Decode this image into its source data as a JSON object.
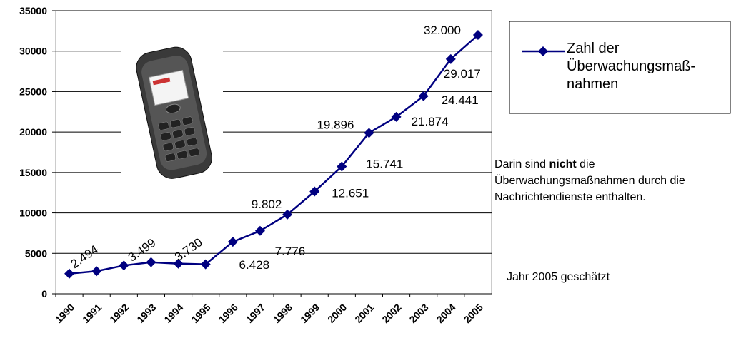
{
  "chart_data": {
    "type": "line",
    "categories": [
      "1990",
      "1991",
      "1992",
      "1993",
      "1994",
      "1995",
      "1996",
      "1997",
      "1998",
      "1999",
      "2000",
      "2001",
      "2002",
      "2003",
      "2004",
      "2005"
    ],
    "series": [
      {
        "name": "Zahl der Überwachungsmaß-nahmen",
        "color": "#000080",
        "values": [
          2494,
          2800,
          3499,
          3900,
          3730,
          3650,
          6428,
          7776,
          9802,
          12651,
          15741,
          19896,
          21874,
          24441,
          29017,
          32000
        ],
        "value_labels": [
          "2.494",
          null,
          "3.499",
          null,
          "3.730",
          null,
          "6.428",
          "7.776",
          "9.802",
          "12.651",
          "15.741",
          "19.896",
          "21.874",
          "24.441",
          "29.017",
          "32.000"
        ]
      }
    ],
    "ylim": [
      0,
      35000
    ],
    "yticks": [
      0,
      5000,
      10000,
      15000,
      20000,
      25000,
      30000,
      35000
    ],
    "grid": true,
    "note": {
      "before": "Darin sind ",
      "bold": "nicht",
      "after": " die Überwachungsmaßnahmen durch die Nachrichtendienste enthalten."
    },
    "footnote": "Jahr 2005 geschätzt"
  }
}
